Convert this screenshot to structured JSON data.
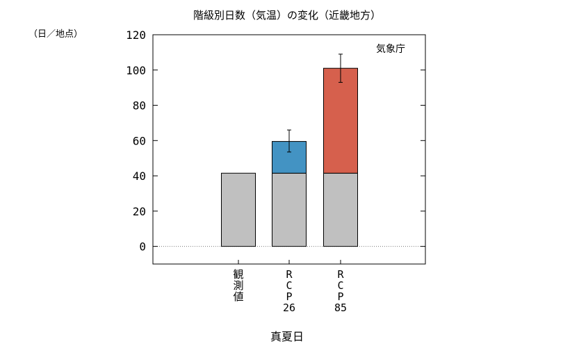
{
  "chart_data": {
    "type": "bar",
    "title": "階級別日数（気温）の変化（近畿地方）",
    "unit_label": "（日／地点）",
    "source": "気象庁",
    "xlabel": "真夏日",
    "ylabel": "",
    "ylim": [
      -10,
      120
    ],
    "yticks": [
      0,
      20,
      40,
      60,
      80,
      100,
      120
    ],
    "grid": false,
    "zero_line": true,
    "categories": [
      {
        "label": [
          "観",
          "測",
          "値"
        ]
      },
      {
        "label": [
          "R",
          "C",
          "P",
          "26"
        ]
      },
      {
        "label": [
          "R",
          "C",
          "P",
          "85"
        ]
      }
    ],
    "series": [
      {
        "values": [
          41.5,
          41.5,
          41.5
        ],
        "color": "#c0c0c0"
      },
      {
        "values": [
          0,
          18,
          59.5
        ],
        "colors": [
          "#c0c0c0",
          "#4393c3",
          "#d6604d"
        ]
      }
    ],
    "error_bars": [
      null,
      {
        "center": 59.5,
        "low": 53.5,
        "high": 66
      },
      {
        "center": 101,
        "low": 93,
        "high": 109
      }
    ]
  }
}
